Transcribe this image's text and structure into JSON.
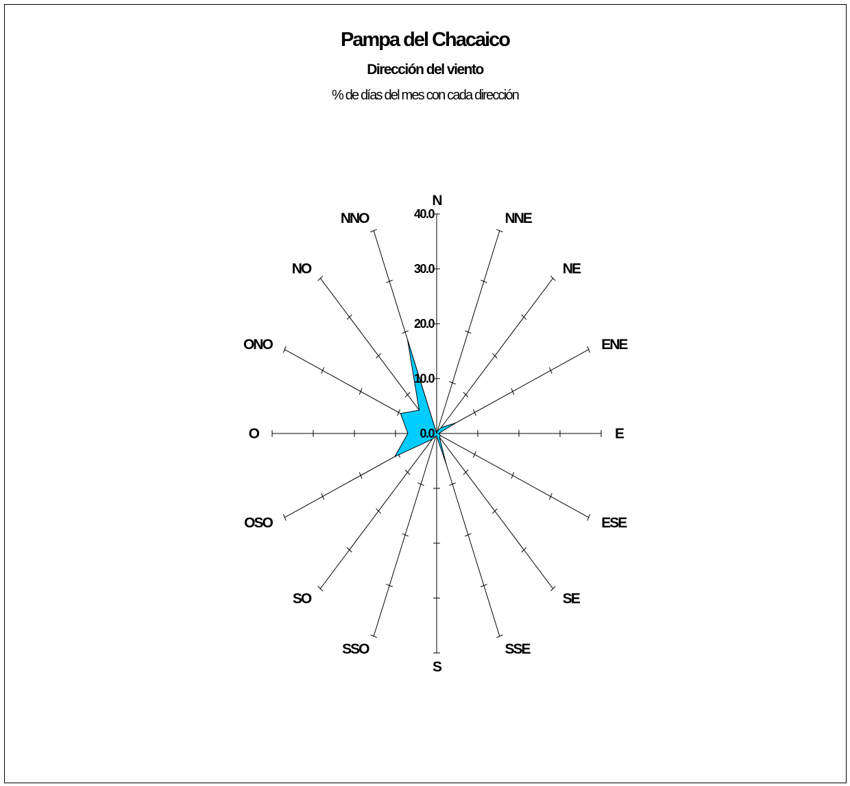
{
  "chart_data": {
    "type": "radar",
    "title": "Pampa del Chacaico",
    "subtitle": "Dirección del viento",
    "subtitle2": "% de días del mes con cada dirección",
    "directions": [
      "N",
      "NNE",
      "NE",
      "ENE",
      "E",
      "ESE",
      "SE",
      "SSE",
      "S",
      "SSO",
      "SO",
      "OSO",
      "O",
      "ONO",
      "NO",
      "NNO"
    ],
    "values": [
      0.0,
      0.5,
      1.5,
      5.0,
      0.5,
      1.0,
      1.0,
      6.0,
      0.5,
      0.5,
      1.5,
      11.0,
      7.0,
      9.5,
      6.0,
      18.5
    ],
    "radial_axis": {
      "min": 0,
      "max": 40,
      "ticks": [
        "0.0",
        "10.0",
        "20.0",
        "30.0",
        "40.0"
      ]
    },
    "fill_color": "#00CCFF",
    "line_color": "#000000"
  }
}
